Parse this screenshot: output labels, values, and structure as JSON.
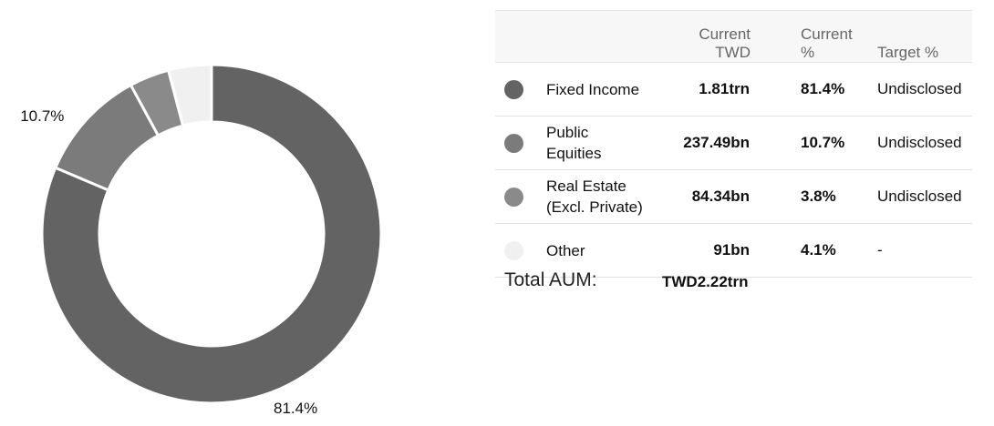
{
  "chart_data": {
    "type": "pie",
    "variant": "donut",
    "categories": [
      "Fixed Income",
      "Public Equities",
      "Real Estate (Excl. Private)",
      "Other"
    ],
    "values": [
      81.4,
      10.7,
      3.8,
      4.1
    ],
    "colors": [
      "#636363",
      "#7b7b7b",
      "#8a8a8a",
      "#f0f0f0"
    ],
    "data_labels": [
      {
        "category": "Fixed Income",
        "text": "81.4%"
      },
      {
        "category": "Public Equities",
        "text": "10.7%"
      }
    ]
  },
  "table": {
    "headers": {
      "current_twd": [
        "Current",
        "TWD"
      ],
      "current_pct": [
        "Current",
        "%"
      ],
      "target_pct": "Target %"
    },
    "rows": [
      {
        "name": [
          "Fixed Income"
        ],
        "current_twd": "1.81trn",
        "current_pct": "81.4%",
        "target_pct": "Undisclosed",
        "color": "#636363"
      },
      {
        "name": [
          "Public",
          "Equities"
        ],
        "current_twd": "237.49bn",
        "current_pct": "10.7%",
        "target_pct": "Undisclosed",
        "color": "#7b7b7b"
      },
      {
        "name": [
          "Real Estate",
          "(Excl. Private)"
        ],
        "current_twd": "84.34bn",
        "current_pct": "3.8%",
        "target_pct": "Undisclosed",
        "color": "#8a8a8a"
      },
      {
        "name": [
          "Other"
        ],
        "current_twd": "91bn",
        "current_pct": "4.1%",
        "target_pct": "-",
        "color": "#f0f0f0"
      }
    ]
  },
  "total": {
    "label": "Total AUM:",
    "value": "TWD2.22trn"
  }
}
